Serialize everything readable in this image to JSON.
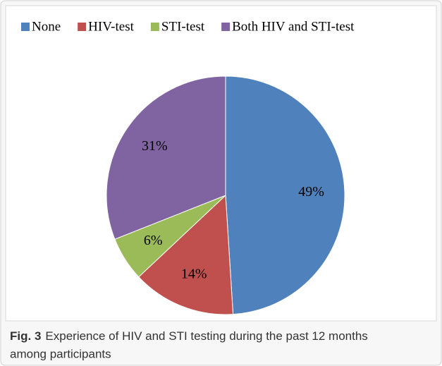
{
  "chart_data": {
    "type": "pie",
    "categories": [
      "None",
      "HIV-test",
      "STI-test",
      "Both HIV and STI-test"
    ],
    "values": [
      49,
      14,
      6,
      31
    ],
    "value_labels": [
      "49%",
      "14%",
      "6%",
      "31%"
    ],
    "colors": [
      "#4f81bd",
      "#c0504d",
      "#9bbb59",
      "#8064a2"
    ],
    "legend": "top"
  },
  "figure": {
    "label": "Fig. 3",
    "caption_line1": "Experience of HIV and STI testing during the past 12 months",
    "caption_line2": "among participants"
  }
}
